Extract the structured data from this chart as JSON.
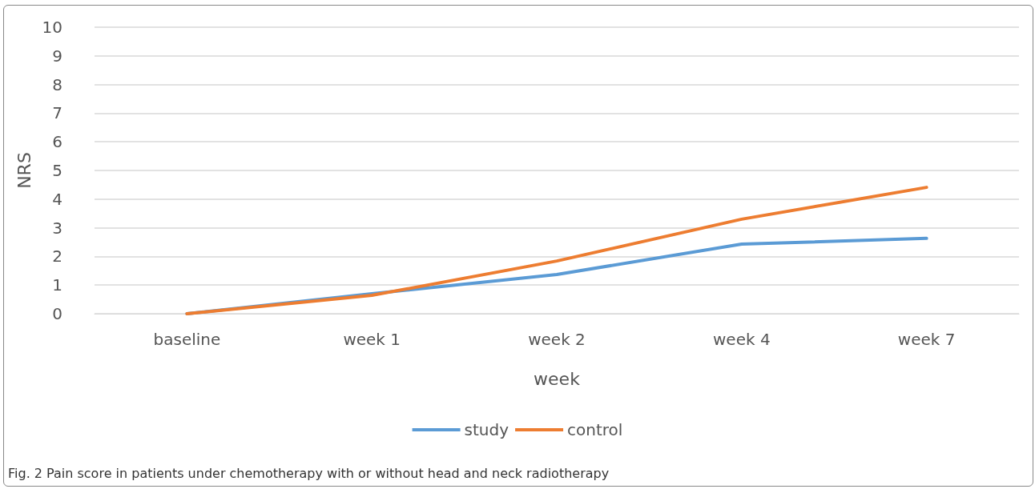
{
  "chart_data": {
    "type": "line",
    "xlabel": "week",
    "ylabel": "NRS",
    "categories": [
      "baseline",
      "week 1",
      "week 2",
      "week 4",
      "week 7"
    ],
    "series": [
      {
        "name": "study",
        "color": "#5b9bd5",
        "values": [
          0,
          0.7,
          1.37,
          2.43,
          2.63
        ]
      },
      {
        "name": "control",
        "color": "#ed7d31",
        "values": [
          0,
          0.64,
          1.84,
          3.3,
          4.41
        ]
      }
    ],
    "ylim": [
      0,
      10
    ],
    "yticks": [
      0,
      1,
      2,
      3,
      4,
      5,
      6,
      7,
      8,
      9,
      10
    ],
    "grid": "y",
    "legend": "bottom",
    "marker": "none",
    "line_style": "solid",
    "annotations": [
      "Fig. 2 Pain score in patients under chemotherapy with or without head and neck radiotherapy"
    ]
  }
}
